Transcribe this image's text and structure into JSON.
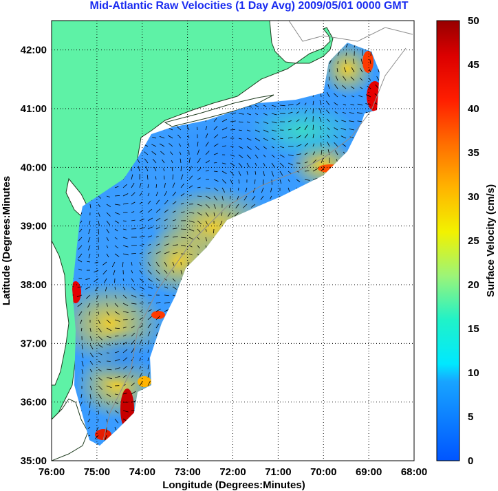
{
  "title": "Mid-Atlantic Raw Velocities (1 Day Avg) 2009/05/01 0000 GMT",
  "axes": {
    "xlabel": "Longitude (Degrees:Minutes)",
    "ylabel": "Latitude (Degrees:Minutes",
    "x_ticks": [
      "76:00",
      "75:00",
      "74:00",
      "73:00",
      "72:00",
      "71:00",
      "70:00",
      "69:00",
      "68:00"
    ],
    "y_ticks": [
      "42:00",
      "41:00",
      "40:00",
      "39:00",
      "38:00",
      "37:00",
      "36:00",
      "35:00"
    ]
  },
  "colorbar": {
    "label": "Surface Velocity (cm/s)",
    "ticks": [
      "50",
      "45",
      "40",
      "35",
      "30",
      "25",
      "20",
      "15",
      "10",
      "5",
      "0"
    ],
    "range": [
      0,
      50
    ]
  },
  "map": {
    "lon_range": [
      -76,
      -68
    ],
    "lat_range": [
      35,
      42.5
    ],
    "grid": true,
    "land_color": "#5ef2a6",
    "grid_style": "dotted"
  }
}
